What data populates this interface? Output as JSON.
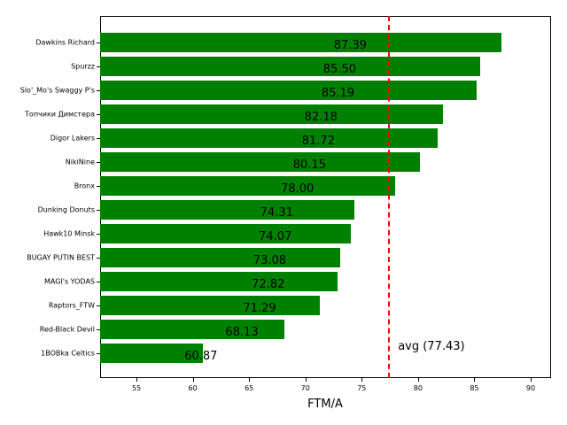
{
  "chart_data": {
    "type": "bar",
    "orientation": "horizontal",
    "title": "",
    "xlabel": "FTM/A",
    "ylabel": "",
    "xlim": [
      51.77,
      91.81
    ],
    "xticks": [
      55,
      60,
      65,
      70,
      75,
      80,
      85,
      90
    ],
    "grid": false,
    "bar_color": "#008000",
    "categories": [
      "Dawkins Richard",
      "Spurzz",
      "Slo'_Mo's Swaggy P's",
      "Топчики Димстера",
      "Digor Lakers",
      "NikiNine",
      "Bronx",
      "Dunking Donuts",
      "Hawk10 Minsk",
      "BUGAY PUTIN BEST",
      "MAGI's YODAS",
      "Raptors_FTW",
      "Red-Black Devil",
      "1BOBka Celtics"
    ],
    "values": [
      87.39,
      85.5,
      85.19,
      82.18,
      81.72,
      80.15,
      78.0,
      74.31,
      74.07,
      73.08,
      72.82,
      71.29,
      68.13,
      60.87
    ],
    "value_labels": [
      "87.39",
      "85.50",
      "85.19",
      "82.18",
      "81.72",
      "80.15",
      "78.00",
      "74.31",
      "74.07",
      "73.08",
      "72.82",
      "71.29",
      "68.13",
      "60.87"
    ],
    "reference_line": {
      "value": 77.43,
      "label": "avg (77.43)",
      "color": "#ff0000",
      "style": "dashed"
    }
  }
}
